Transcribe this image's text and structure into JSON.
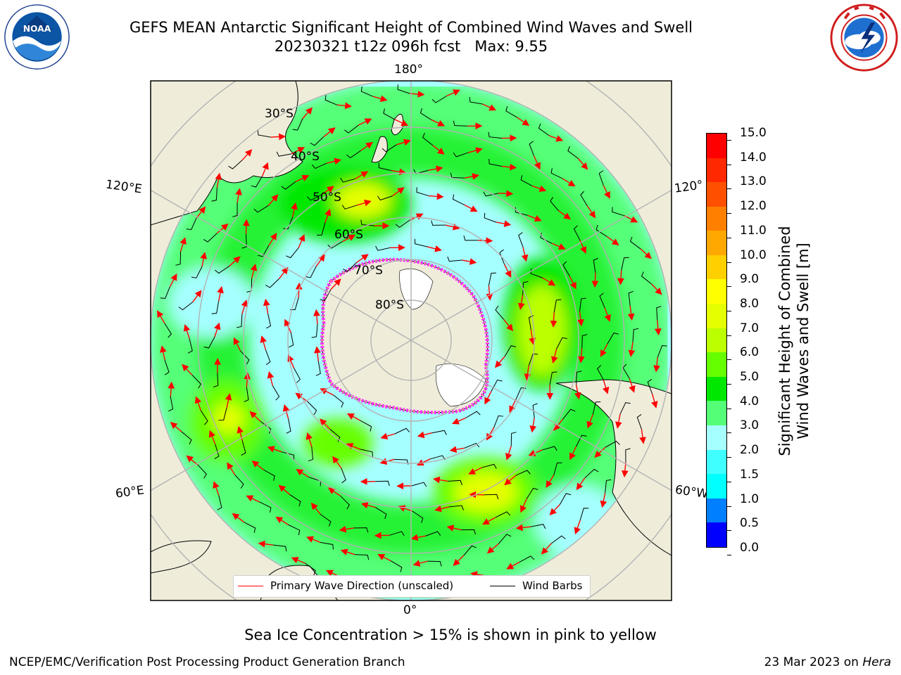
{
  "title": {
    "line1": "GEFS MEAN Antarctic Significant Height of Combined Wind Waves and Swell",
    "line2": "20230321 t12z 096h fcst",
    "max": "Max: 9.55"
  },
  "logos": {
    "left": "noaa-logo",
    "left_text": "NOAA",
    "right": "nws-logo"
  },
  "map": {
    "projection": "south-polar-stereographic",
    "lon_labels": [
      "180°",
      "120°E",
      "120°",
      "60°E",
      "60°W",
      "0°"
    ],
    "lat_labels": [
      "30°S",
      "40°S",
      "50°S",
      "60°S",
      "70°S",
      "80°S"
    ],
    "legend": {
      "primary": "Primary Wave Direction (unscaled)",
      "barbs": "Wind Barbs"
    },
    "colors": {
      "land": "#efedda",
      "primary_arrow": "#ff0000",
      "barb": "#000000",
      "sea_ice": "#ff33ff"
    }
  },
  "colorbar": {
    "label_line1": "Significant Height of Combined",
    "label_line2": "Wind Waves and Swell [m]",
    "ticks": [
      "0.0",
      "0.5",
      "1.0",
      "1.5",
      "2.0",
      "3.0",
      "4.0",
      "5.0",
      "6.0",
      "7.0",
      "8.0",
      "9.0",
      "10.0",
      "11.0",
      "12.0",
      "13.0",
      "14.0",
      "15.0"
    ],
    "colors": [
      "#0000ff",
      "#0080ff",
      "#00ffff",
      "#40ffff",
      "#a6ffff",
      "#54ff77",
      "#00e800",
      "#66ff00",
      "#bbff00",
      "#e5ff00",
      "#ffff00",
      "#ffd000",
      "#ffa800",
      "#ff8000",
      "#ff5000",
      "#ff2800",
      "#ff0000"
    ]
  },
  "footer": {
    "sea_ice": "Sea Ice Concentration > 15% is shown in pink to yellow",
    "left": "NCEP/EMC/Verification Post Processing Product Generation Branch",
    "date": "23 Mar 2023 on ",
    "host": "Hera"
  }
}
